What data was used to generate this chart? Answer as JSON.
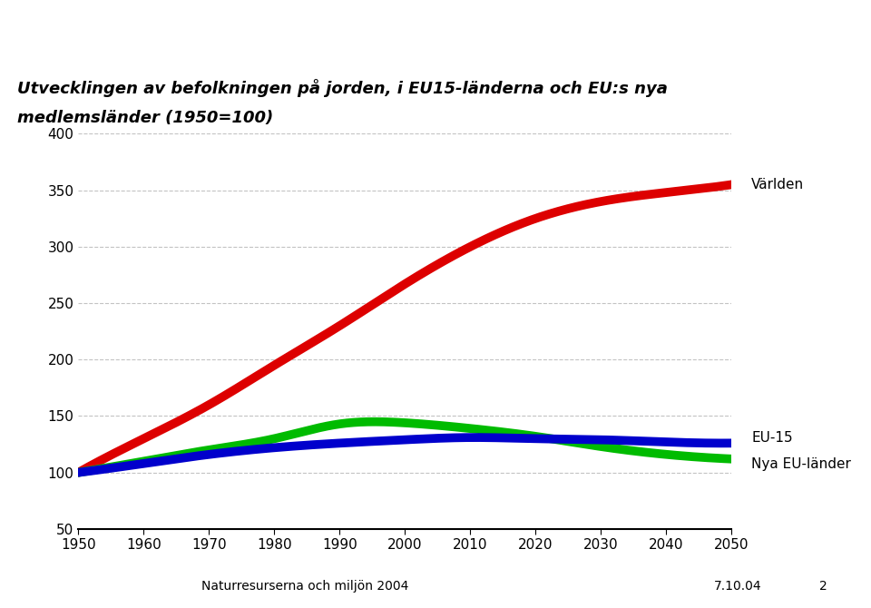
{
  "title_line1": "Utvecklingen av befolkningen på jorden, i EU15-länderna och EU:s nya",
  "title_line2": "medlemsländer (1950=100)",
  "years": [
    1950,
    1960,
    1970,
    1980,
    1990,
    2000,
    2010,
    2020,
    2030,
    2040,
    2050
  ],
  "världen": [
    100,
    130,
    160,
    195,
    230,
    267,
    300,
    325,
    340,
    348,
    355
  ],
  "eu15": [
    100,
    108,
    116,
    122,
    126,
    129,
    131,
    130,
    129,
    127,
    126
  ],
  "nya_eu": [
    100,
    110,
    120,
    130,
    143,
    144,
    139,
    132,
    123,
    116,
    112
  ],
  "världen_color": "#dd0000",
  "eu15_color": "#0000cc",
  "nya_eu_color": "#00bb00",
  "line_width": 7,
  "ylim": [
    50,
    400
  ],
  "yticks": [
    50,
    100,
    150,
    200,
    250,
    300,
    350,
    400
  ],
  "xticks": [
    1950,
    1960,
    1970,
    1980,
    1990,
    2000,
    2010,
    2020,
    2030,
    2040,
    2050
  ],
  "grid_color": "#aaaaaa",
  "bg_color": "#ffffff",
  "label_världen": "Världen",
  "label_eu15": "EU-15",
  "label_nya_eu": "Nya EU-länder",
  "footer_left": "Naturresurserna och miljön 2004",
  "footer_right": "7.10.04",
  "footer_page": "2"
}
